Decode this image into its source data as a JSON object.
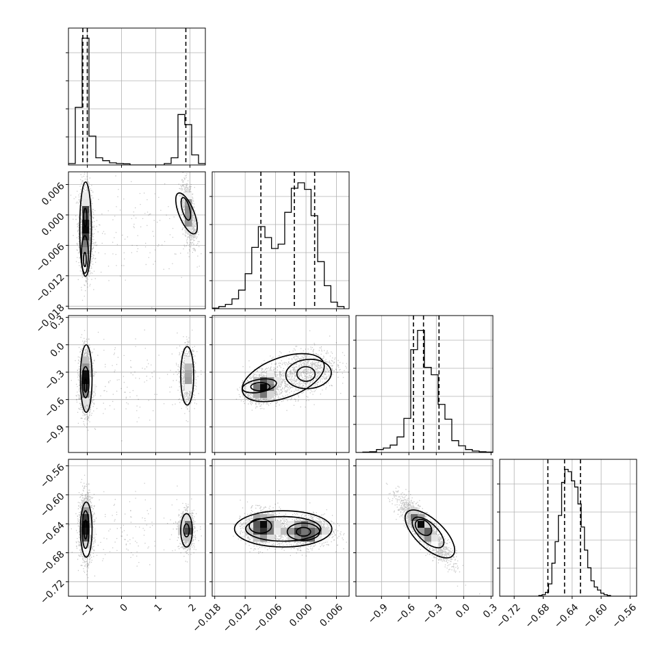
{
  "chart_data": {
    "type": "corner",
    "parameters": [
      {
        "range": [
          -1.55,
          2.45
        ],
        "ticks": [
          -1,
          0,
          1,
          2
        ],
        "tick_labels": [
          "−1",
          "0",
          "1",
          "2"
        ],
        "quantiles": [
          -1.13,
          -1.0,
          1.88
        ],
        "hist": {
          "edges": [
            -1.55,
            -1.35,
            -1.15,
            -0.95,
            -0.75,
            -0.55,
            -0.35,
            -0.15,
            0.05,
            0.25,
            0.45,
            0.65,
            0.85,
            1.05,
            1.25,
            1.45,
            1.65,
            1.85,
            2.05,
            2.25,
            2.45
          ],
          "counts": [
            1,
            40,
            88,
            20,
            5,
            3,
            1.5,
            1,
            0.8,
            0,
            0,
            0,
            0,
            0,
            1,
            5,
            35,
            28,
            7,
            1
          ]
        },
        "ylim": [
          0,
          95
        ]
      },
      {
        "range": [
          -0.0185,
          0.0085
        ],
        "ticks": [
          -0.018,
          -0.012,
          -0.006,
          0.0,
          0.006
        ],
        "tick_labels": [
          "−0.018",
          "−0.012",
          "−0.006",
          "0.000",
          "0.006"
        ],
        "quantiles": [
          -0.0089,
          -0.0023,
          0.0017
        ],
        "hist": {
          "edges": [
            -0.0185,
            -0.0172,
            -0.0159,
            -0.0146,
            -0.0133,
            -0.012,
            -0.0107,
            -0.0094,
            -0.0081,
            -0.0068,
            -0.0055,
            -0.0042,
            -0.0029,
            -0.0016,
            -0.0003,
            0.001,
            0.0023,
            0.0036,
            0.0049,
            0.0062,
            0.0075
          ],
          "counts": [
            0.5,
            2,
            4,
            9,
            17,
            32,
            56,
            75,
            65,
            55,
            59,
            88,
            110,
            115,
            109,
            85,
            43,
            21,
            6,
            2
          ]
        },
        "ylim": [
          0,
          125
        ]
      },
      {
        "range": [
          -1.18,
          0.32
        ],
        "ticks": [
          -0.9,
          -0.6,
          -0.3,
          0.0,
          0.3
        ],
        "tick_labels": [
          "−0.9",
          "−0.6",
          "−0.3",
          "0.0",
          "0.3"
        ],
        "quantiles": [
          -0.55,
          -0.44,
          -0.27
        ],
        "hist": {
          "edges": [
            -1.18,
            -1.105,
            -1.03,
            -0.955,
            -0.88,
            -0.805,
            -0.73,
            -0.655,
            -0.58,
            -0.505,
            -0.43,
            -0.355,
            -0.28,
            -0.205,
            -0.13,
            -0.055,
            0.02,
            0.095,
            0.17,
            0.245,
            0.32
          ],
          "counts": [
            0,
            0.5,
            1,
            4,
            6,
            10,
            21,
            46,
            139,
            165,
            115,
            105,
            65,
            45,
            16,
            9,
            4,
            2,
            1,
            0.5
          ]
        },
        "ylim": [
          0,
          185
        ]
      },
      {
        "range": [
          -0.74,
          -0.551
        ],
        "ticks": [
          -0.72,
          -0.68,
          -0.64,
          -0.6,
          -0.56
        ],
        "tick_labels": [
          "−0.72",
          "−0.68",
          "−0.64",
          "−0.60",
          "−0.56"
        ],
        "quantiles": [
          -0.6735,
          -0.6505,
          -0.6285
        ],
        "hist": {
          "edges": [
            -0.74,
            -0.7355,
            -0.731,
            -0.7265,
            -0.722,
            -0.7175,
            -0.713,
            -0.7085,
            -0.704,
            -0.6995,
            -0.695,
            -0.6905,
            -0.686,
            -0.6815,
            -0.677,
            -0.6725,
            -0.668,
            -0.6635,
            -0.659,
            -0.6545,
            -0.65,
            -0.6455,
            -0.641,
            -0.6365,
            -0.632,
            -0.6275,
            -0.623,
            -0.6185,
            -0.614,
            -0.6095,
            -0.605,
            -0.6005,
            -0.596,
            -0.5915,
            -0.587,
            -0.5825,
            -0.578,
            -0.5735,
            -0.569,
            -0.5645,
            -0.56,
            -0.5555,
            -0.551
          ],
          "counts": [
            0,
            0,
            0,
            0,
            0,
            0,
            0,
            0,
            0,
            0,
            0,
            0,
            1,
            2,
            5,
            16,
            43,
            71,
            105,
            148,
            165,
            162,
            150,
            142,
            120,
            90,
            60,
            37,
            20,
            12,
            8,
            4,
            2,
            1,
            0,
            0,
            0,
            0,
            0,
            0,
            0,
            0
          ],
          "note": ""
        },
        "ylim": [
          0,
          178
        ]
      }
    ],
    "pairs": [
      {
        "row": 1,
        "col": 0,
        "blobs": [
          {
            "cx": -1.05,
            "cy": -0.003,
            "sx": 0.1,
            "sy": 0.0042,
            "rho": -0.1,
            "w": 0.62
          },
          {
            "cx": 1.95,
            "cy": 0.0005,
            "sx": 0.11,
            "sy": 0.0032,
            "rho": -0.5,
            "w": 0.33
          },
          {
            "cx": 0.3,
            "cy": -0.003,
            "sx": 0.9,
            "sy": 0.005,
            "rho": 0.0,
            "w": 0.05
          }
        ],
        "contours": [
          {
            "cx": -1.05,
            "cy": -0.0028,
            "rx": 0.17,
            "ry": 0.0093,
            "rot": 0
          },
          {
            "cx": -1.07,
            "cy": -0.0078,
            "rx": 0.1,
            "ry": 0.0037,
            "rot": 0
          },
          {
            "cx": -1.06,
            "cy": -0.0005,
            "rx": 0.05,
            "ry": 0.0018,
            "rot": 0
          },
          {
            "cx": -1.07,
            "cy": -0.0088,
            "rx": 0.04,
            "ry": 0.0014,
            "rot": 0
          },
          {
            "cx": 1.9,
            "cy": 0.0003,
            "rx": 0.22,
            "ry": 0.0043,
            "rot": -22
          },
          {
            "cx": 1.88,
            "cy": 0.0012,
            "rx": 0.11,
            "ry": 0.0023,
            "rot": -15
          }
        ]
      },
      {
        "row": 2,
        "col": 0,
        "blobs": [
          {
            "cx": -1.05,
            "cy": -0.4,
            "sx": 0.1,
            "sy": 0.17,
            "rho": 0.0,
            "w": 0.62
          },
          {
            "cx": 1.92,
            "cy": -0.33,
            "sx": 0.11,
            "sy": 0.15,
            "rho": 0.0,
            "w": 0.33
          },
          {
            "cx": 0.3,
            "cy": -0.4,
            "sx": 0.9,
            "sy": 0.22,
            "rho": 0.0,
            "w": 0.05
          }
        ],
        "contours": [
          {
            "cx": -1.03,
            "cy": -0.37,
            "rx": 0.17,
            "ry": 0.37,
            "rot": 0
          },
          {
            "cx": -1.05,
            "cy": -0.41,
            "rx": 0.1,
            "ry": 0.17,
            "rot": 0
          },
          {
            "cx": -1.05,
            "cy": -0.45,
            "rx": 0.04,
            "ry": 0.07,
            "rot": 0
          },
          {
            "cx": 1.92,
            "cy": -0.34,
            "rx": 0.19,
            "ry": 0.32,
            "rot": 0
          }
        ]
      },
      {
        "row": 2,
        "col": 1,
        "blobs": [
          {
            "cx": -0.0085,
            "cy": -0.46,
            "sx": 0.0017,
            "sy": 0.085,
            "rho": 0.2,
            "w": 0.6
          },
          {
            "cx": -0.0005,
            "cy": -0.3,
            "sx": 0.0032,
            "sy": 0.13,
            "rho": 0.3,
            "w": 0.4
          }
        ],
        "contours": [
          {
            "cx": -0.0045,
            "cy": -0.36,
            "rx": 0.0085,
            "ry": 0.22,
            "rot": -20
          },
          {
            "cx": -0.0092,
            "cy": -0.45,
            "rx": 0.0034,
            "ry": 0.07,
            "rot": -10
          },
          {
            "cx": 0.0005,
            "cy": -0.32,
            "rx": 0.0045,
            "ry": 0.16,
            "rot": -5
          },
          {
            "cx": -0.009,
            "cy": -0.46,
            "rx": 0.0019,
            "ry": 0.045,
            "rot": 0
          },
          {
            "cx": 0.0,
            "cy": -0.32,
            "rx": 0.0018,
            "ry": 0.08,
            "rot": 0
          }
        ]
      },
      {
        "row": 3,
        "col": 0,
        "blobs": [
          {
            "cx": -1.05,
            "cy": -0.645,
            "sx": 0.1,
            "sy": 0.022,
            "rho": 0.0,
            "w": 0.62
          },
          {
            "cx": 1.9,
            "cy": -0.648,
            "sx": 0.11,
            "sy": 0.013,
            "rho": 0.0,
            "w": 0.33
          },
          {
            "cx": 0.3,
            "cy": -0.648,
            "sx": 0.9,
            "sy": 0.025,
            "rho": 0.0,
            "w": 0.05
          }
        ],
        "contours": [
          {
            "cx": -1.03,
            "cy": -0.648,
            "rx": 0.17,
            "ry": 0.038,
            "rot": 0
          },
          {
            "cx": -1.05,
            "cy": -0.648,
            "rx": 0.1,
            "ry": 0.026,
            "rot": 0
          },
          {
            "cx": -1.05,
            "cy": -0.648,
            "rx": 0.05,
            "ry": 0.013,
            "rot": 0
          },
          {
            "cx": 1.9,
            "cy": -0.649,
            "rx": 0.17,
            "ry": 0.023,
            "rot": 0
          },
          {
            "cx": 1.9,
            "cy": -0.649,
            "rx": 0.08,
            "ry": 0.009,
            "rot": 0
          }
        ]
      },
      {
        "row": 3,
        "col": 1,
        "blobs": [
          {
            "cx": -0.0088,
            "cy": -0.645,
            "sx": 0.0018,
            "sy": 0.012,
            "rho": 0.0,
            "w": 0.45
          },
          {
            "cx": -0.0003,
            "cy": -0.65,
            "sx": 0.0027,
            "sy": 0.011,
            "rho": 0.0,
            "w": 0.55
          }
        ],
        "contours": [
          {
            "cx": -0.0045,
            "cy": -0.647,
            "rx": 0.0096,
            "ry": 0.025,
            "rot": 0
          },
          {
            "cx": -0.0045,
            "cy": -0.647,
            "rx": 0.0074,
            "ry": 0.017,
            "rot": 0
          },
          {
            "cx": -0.009,
            "cy": -0.643,
            "rx": 0.0022,
            "ry": 0.01,
            "rot": 0
          },
          {
            "cx": -0.0005,
            "cy": -0.651,
            "rx": 0.0032,
            "ry": 0.012,
            "rot": 0
          },
          {
            "cx": -0.0005,
            "cy": -0.651,
            "rx": 0.0014,
            "ry": 0.006,
            "rot": 0
          }
        ]
      },
      {
        "row": 3,
        "col": 2,
        "blobs": [
          {
            "cx": -0.43,
            "cy": -0.648,
            "sx": 0.14,
            "sy": 0.021,
            "rho": -0.88,
            "w": 0.8
          },
          {
            "cx": -0.48,
            "cy": -0.64,
            "sx": 0.05,
            "sy": 0.01,
            "rho": -0.7,
            "w": 0.2
          }
        ],
        "contours": [
          {
            "cx": -0.37,
            "cy": -0.654,
            "rx": 0.3,
            "ry": 0.006,
            "rot": 0,
            "angle_data": true
          },
          {
            "cx": -0.39,
            "cy": -0.652,
            "rx": 0.19,
            "ry": 0.004,
            "rot": 0,
            "angle_data": true
          },
          {
            "cx": -0.44,
            "cy": -0.645,
            "rx": 0.09,
            "ry": 0.0028,
            "rot": 0,
            "angle_data": true
          }
        ]
      }
    ]
  }
}
